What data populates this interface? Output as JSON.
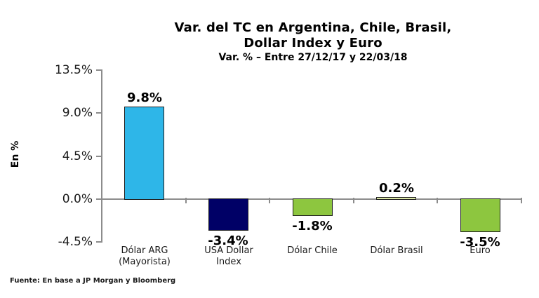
{
  "header": {
    "title_line1": "Var. del TC en Argentina, Chile, Brasil,",
    "title_line2": "Dollar Index y Euro",
    "subtitle": "Var. % – Entre 27/12/17 y 22/03/18"
  },
  "footer": {
    "source": "Fuente: En base a JP Morgan y Bloomberg"
  },
  "chart_data": {
    "type": "bar",
    "title": "Var. del TC en Argentina, Chile, Brasil, Dollar Index y Euro",
    "subtitle": "Var. % – Entre 27/12/17 y 22/03/18",
    "xlabel": "",
    "ylabel": "En %",
    "ylim": [
      -4.5,
      13.5
    ],
    "yticks": [
      13.5,
      9.0,
      4.5,
      0.0,
      -4.5
    ],
    "ytick_labels": [
      "13.5%",
      "9.0%",
      "4.5%",
      "0.0%",
      "-4.5%"
    ],
    "categories": [
      "Dólar ARG\n(Mayorista)",
      "USA Dollar\nIndex",
      "Dólar Chile",
      "Dólar Brasil",
      "Euro"
    ],
    "values": [
      9.8,
      -3.4,
      -1.8,
      0.2,
      -3.5
    ],
    "value_labels": [
      "9.8%",
      "-3.4%",
      "-1.8%",
      "0.2%",
      "-3.5%"
    ],
    "bar_colors": [
      "#2EB6E8",
      "#000066",
      "#8DC63F",
      "#DCE8A6",
      "#8DC63F"
    ],
    "bar_border_color": "#1f1f1f",
    "axis_color": "#8c8c8c",
    "grid": false,
    "legend": false,
    "source": "Fuente: En base a JP Morgan y Bloomberg"
  }
}
